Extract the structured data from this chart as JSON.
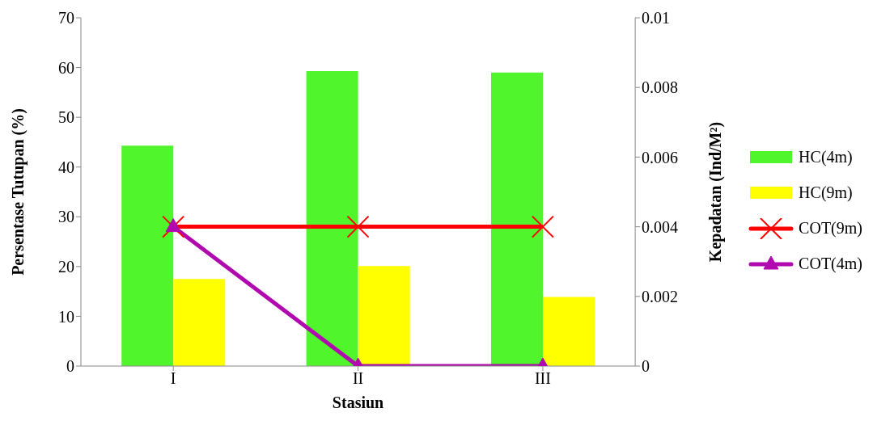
{
  "chart_data": {
    "type": "bar",
    "xlabel": "Stasiun",
    "ylabel": "Persentase Tutupan (%)",
    "y2label": "Kepadatan (Ind/M²)",
    "categories": [
      "I",
      "II",
      "III"
    ],
    "series": [
      {
        "name": "HC(4m)",
        "color": "#50f52c",
        "values": [
          44.3,
          59.3,
          59.0
        ]
      },
      {
        "name": "HC(9m)",
        "color": "#ffff00",
        "values": [
          17.5,
          20.1,
          13.9
        ]
      },
      {
        "name": "COT(9m)",
        "type": "line",
        "axis": "y2",
        "marker": "cross",
        "color": "#ff0000",
        "values": [
          0.004,
          0.004,
          0.004
        ]
      },
      {
        "name": "COT(4m)",
        "type": "line",
        "axis": "y2",
        "marker": "triangle",
        "color": "#b00aae",
        "values": [
          0.004,
          0,
          0
        ]
      }
    ],
    "ylim": [
      0,
      70
    ],
    "yticks": [
      0,
      10,
      20,
      30,
      40,
      50,
      60,
      70
    ],
    "y2lim": [
      0,
      0.01
    ],
    "y2ticks": [
      0,
      0.002,
      0.004,
      0.006,
      0.008,
      0.01
    ],
    "grid": false,
    "legend": "right"
  }
}
